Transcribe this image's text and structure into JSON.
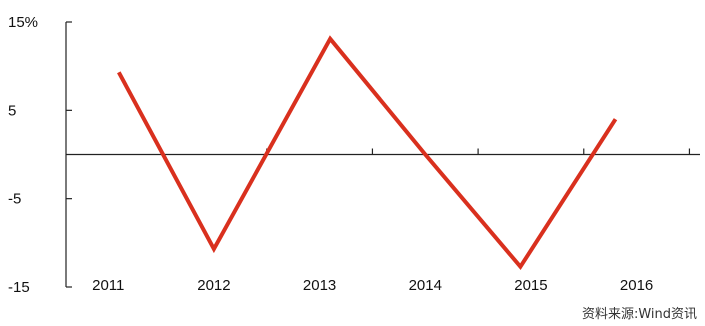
{
  "chart_data": {
    "type": "line",
    "x": [
      "2011",
      "2012",
      "2013",
      "2014",
      "2015",
      "2016"
    ],
    "categories": [
      "2011",
      "2012",
      "2013",
      "2014",
      "2015",
      "2016"
    ],
    "series": [
      {
        "x": [
          2011.1,
          2012.0,
          2013.1,
          2014.0,
          2014.9,
          2015.8
        ],
        "values": [
          9.3,
          -10.7,
          13.1,
          0.0,
          -12.7,
          4.0
        ],
        "color": "#d9301e"
      }
    ],
    "ylim": [
      -15,
      15
    ],
    "yticks": [
      -15,
      -5,
      5,
      15
    ],
    "ytick_labels": [
      "-15",
      "-5",
      "5",
      "15%"
    ],
    "xlim": [
      2010.6,
      2016.6
    ],
    "grid": false,
    "legend": "none",
    "title": "",
    "xlabel": "",
    "ylabel": ""
  },
  "source_note": "资料来源:Wind资讯"
}
